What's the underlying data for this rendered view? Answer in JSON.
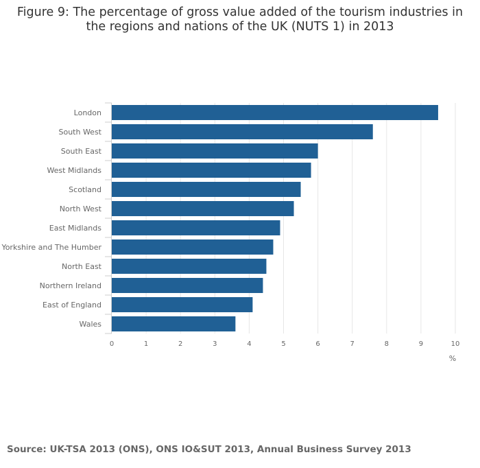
{
  "chart_data": {
    "type": "bar",
    "orientation": "horizontal",
    "title_line1": "Figure 9: The percentage of gross value added of the tourism industries in",
    "title_line2": "the regions and nations of the UK (NUTS 1) in 2013",
    "xlabel": "%",
    "ylabel": "",
    "categories": [
      "London",
      "South West",
      "South East",
      "West Midlands",
      "Scotland",
      "North West",
      "East Midlands",
      "Yorkshire and The Humber",
      "North East",
      "Northern Ireland",
      "East of England",
      "Wales"
    ],
    "values": [
      9.5,
      7.6,
      6.0,
      5.8,
      5.5,
      5.3,
      4.9,
      4.7,
      4.5,
      4.4,
      4.1,
      3.6
    ],
    "xlim": [
      0,
      10
    ],
    "x_ticks": [
      "0",
      "1",
      "2",
      "3",
      "4",
      "5",
      "6",
      "7",
      "8",
      "9",
      "10"
    ],
    "grid": "vertical",
    "bar_color": "#206095",
    "grid_color": "#e6e6e6",
    "legend": "none"
  },
  "source": "Source: UK-TSA 2013 (ONS), ONS IO&SUT 2013, Annual Business Survey 2013"
}
